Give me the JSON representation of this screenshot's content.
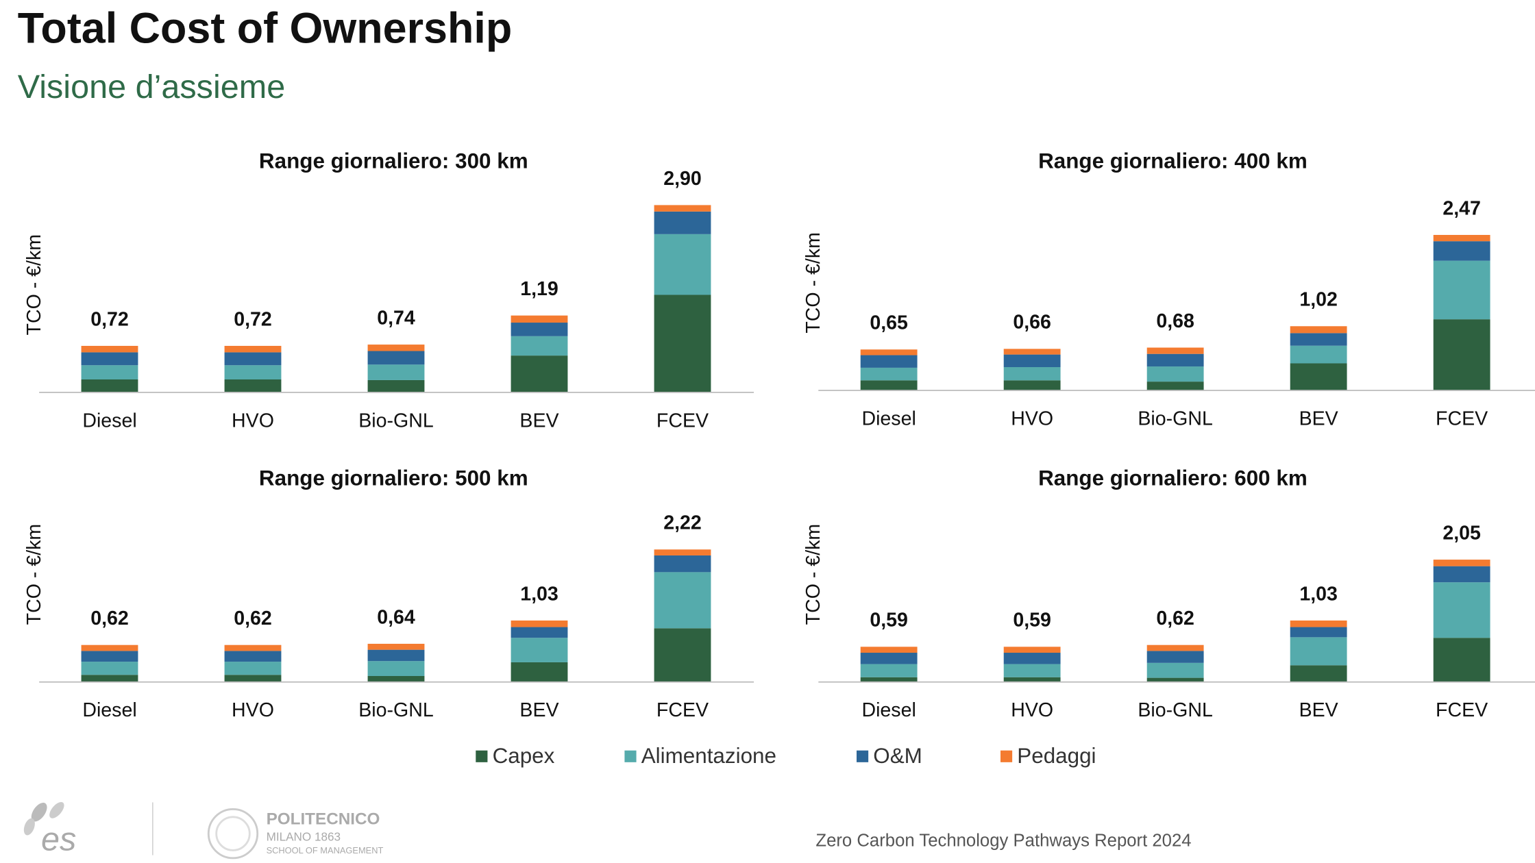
{
  "header": {
    "title": "Total Cost of Ownership",
    "subtitle": "Visione d’assieme"
  },
  "chart_data": [
    {
      "type": "bar",
      "stacked": true,
      "title": "Range giornaliero: 300 km",
      "y_label": "TCO - €/km",
      "ylim": [
        0,
        3
      ],
      "categories": [
        "Diesel",
        "HVO",
        "Bio-GNL",
        "BEV",
        "FCEV"
      ],
      "series": [
        {
          "name": "Capex",
          "color": "#2e6140",
          "values": [
            0.2,
            0.2,
            0.19,
            0.57,
            1.51
          ]
        },
        {
          "name": "Alimentazione",
          "color": "#55abac",
          "values": [
            0.22,
            0.22,
            0.24,
            0.3,
            0.94
          ]
        },
        {
          "name": "O&M",
          "color": "#2c6698",
          "values": [
            0.2,
            0.2,
            0.21,
            0.21,
            0.35
          ]
        },
        {
          "name": "Pedaggi",
          "color": "#f47b30",
          "values": [
            0.1,
            0.1,
            0.1,
            0.11,
            0.1
          ]
        }
      ],
      "totals": [
        0.72,
        0.72,
        0.74,
        1.19,
        2.9
      ],
      "total_labels": [
        "0,72",
        "0,72",
        "0,74",
        "1,19",
        "2,90"
      ]
    },
    {
      "type": "bar",
      "stacked": true,
      "title": "Range giornaliero: 400 km",
      "y_label": "TCO - €/km",
      "ylim": [
        0,
        3
      ],
      "categories": [
        "Diesel",
        "HVO",
        "Bio-GNL",
        "BEV",
        "FCEV"
      ],
      "series": [
        {
          "name": "Capex",
          "color": "#2e6140",
          "values": [
            0.16,
            0.16,
            0.14,
            0.43,
            1.13
          ]
        },
        {
          "name": "Alimentazione",
          "color": "#55abac",
          "values": [
            0.2,
            0.21,
            0.24,
            0.28,
            0.93
          ]
        },
        {
          "name": "O&M",
          "color": "#2c6698",
          "values": [
            0.2,
            0.2,
            0.2,
            0.2,
            0.31
          ]
        },
        {
          "name": "Pedaggi",
          "color": "#f47b30",
          "values": [
            0.09,
            0.09,
            0.1,
            0.11,
            0.1
          ]
        }
      ],
      "totals": [
        0.65,
        0.66,
        0.68,
        1.02,
        2.47
      ],
      "total_labels": [
        "0,65",
        "0,66",
        "0,68",
        "1,02",
        "2,47"
      ]
    },
    {
      "type": "bar",
      "stacked": true,
      "title": "Range giornaliero: 500 km",
      "y_label": "TCO - €/km",
      "ylim": [
        0,
        3
      ],
      "categories": [
        "Diesel",
        "HVO",
        "Bio-GNL",
        "BEV",
        "FCEV"
      ],
      "series": [
        {
          "name": "Capex",
          "color": "#2e6140",
          "values": [
            0.12,
            0.12,
            0.1,
            0.33,
            0.9
          ]
        },
        {
          "name": "Alimentazione",
          "color": "#55abac",
          "values": [
            0.22,
            0.22,
            0.25,
            0.41,
            0.94
          ]
        },
        {
          "name": "O&M",
          "color": "#2c6698",
          "values": [
            0.18,
            0.18,
            0.19,
            0.18,
            0.28
          ]
        },
        {
          "name": "Pedaggi",
          "color": "#f47b30",
          "values": [
            0.1,
            0.1,
            0.1,
            0.11,
            0.1
          ]
        }
      ],
      "totals": [
        0.62,
        0.62,
        0.64,
        1.03,
        2.22
      ],
      "total_labels": [
        "0,62",
        "0,62",
        "0,64",
        "1,03",
        "2,22"
      ]
    },
    {
      "type": "bar",
      "stacked": true,
      "title": "Range giornaliero: 600 km",
      "y_label": "TCO - €/km",
      "ylim": [
        0,
        3
      ],
      "categories": [
        "Diesel",
        "HVO",
        "Bio-GNL",
        "BEV",
        "FCEV"
      ],
      "series": [
        {
          "name": "Capex",
          "color": "#2e6140",
          "values": [
            0.08,
            0.08,
            0.07,
            0.28,
            0.74
          ]
        },
        {
          "name": "Alimentazione",
          "color": "#55abac",
          "values": [
            0.22,
            0.22,
            0.25,
            0.47,
            0.93
          ]
        },
        {
          "name": "O&M",
          "color": "#2c6698",
          "values": [
            0.19,
            0.19,
            0.2,
            0.17,
            0.27
          ]
        },
        {
          "name": "Pedaggi",
          "color": "#f47b30",
          "values": [
            0.1,
            0.1,
            0.1,
            0.11,
            0.11
          ]
        }
      ],
      "totals": [
        0.59,
        0.59,
        0.62,
        1.03,
        2.05
      ],
      "total_labels": [
        "0,59",
        "0,59",
        "0,62",
        "1,03",
        "2,05"
      ]
    }
  ],
  "footer": {
    "brand": "es",
    "school": [
      "POLITECNICO",
      "MILANO 1863",
      "SCHOOL OF MANAGEMENT"
    ],
    "report": "Zero Carbon Technology Pathways Report 2024"
  }
}
